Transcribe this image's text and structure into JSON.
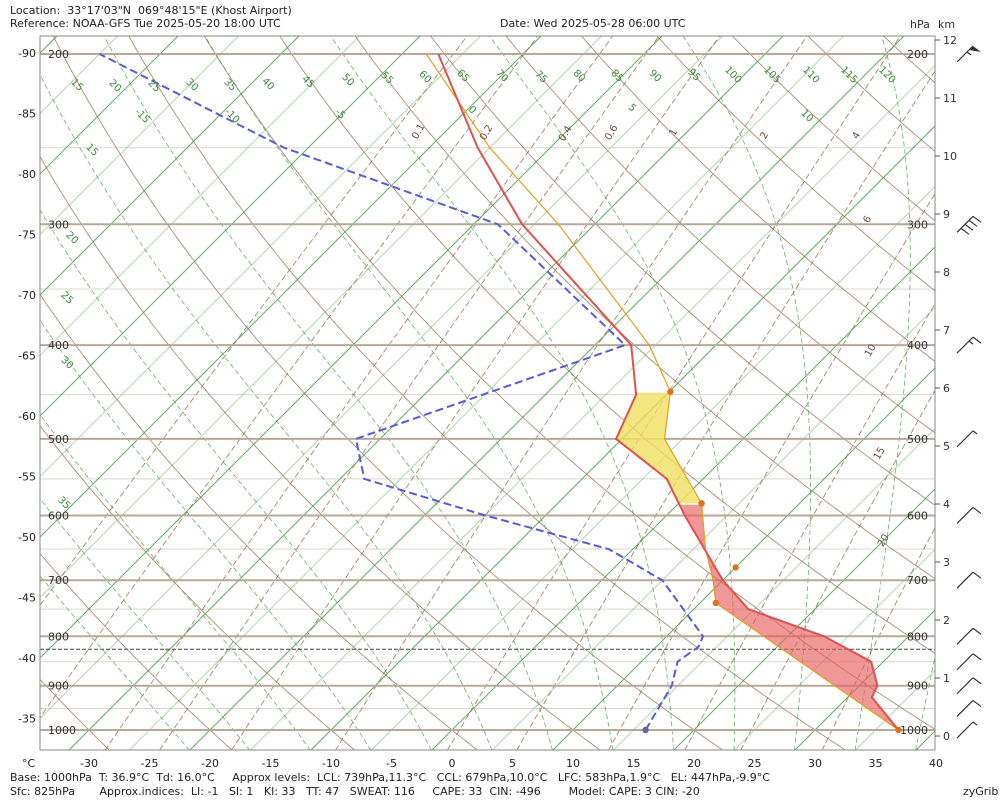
{
  "header": {
    "location": "Location:  33°17'03\"N  069°48'15\"E (Khost Airport)",
    "reference": "Reference: NOAA-GFS Tue 2025-05-20 18:00 UTC",
    "date": "Date: Wed 2025-05-28 06:00 UTC",
    "unit_hpa": "hPa",
    "unit_km": "km"
  },
  "footer": {
    "line1": "Base: 1000hPa  T: 36.9°C  Td: 16.0°C     Approx levels:  LCL: 739hPa,11.3°C   CCL: 679hPa,10.0°C   LFC: 583hPa,1.9°C   EL: 447hPa,-9.9°C",
    "line2": "Sfc: 825hPa       Approx.indices:  LI: -1   SI: 1   KI: 33   TT: 47   SWEAT: 116     CAPE: 33  CIN: -496        Model: CAPE: 3 CIN: -20",
    "brand": "zyGrib"
  },
  "colors": {
    "temperature": "#e05050",
    "dewpoint": "#5a5ad8",
    "parcel": "#e0a020",
    "cape_fill": "#e86060",
    "cape_fill_yellow": "#f0e060",
    "isotherm": "#50a050",
    "dry_adiabat": "#8b6a4a",
    "moist_adiabat": "#50a050",
    "mixing_ratio": "#8b6a4a",
    "isobar": "#b8a898"
  },
  "chart_data": {
    "type": "skew-t",
    "x_axis_unit": "°C",
    "x_ticks": [
      -30,
      -25,
      -20,
      -15,
      -10,
      -5,
      0,
      5,
      10,
      15,
      20,
      25,
      30,
      35,
      40
    ],
    "xlim": [
      -35,
      40
    ],
    "ylim_hpa": [
      1000,
      200
    ],
    "left_axis_ticks": [
      -90,
      -85,
      -80,
      -75,
      -70,
      -65,
      -60,
      -55,
      -50,
      -45,
      -40,
      -35
    ],
    "pressure_levels": [
      1000,
      900,
      800,
      700,
      600,
      500,
      400,
      300,
      200
    ],
    "km_ticks": [
      0,
      1,
      2,
      3,
      4,
      5,
      6,
      7,
      8,
      9,
      10,
      11,
      12
    ],
    "dry_adiabat_labels": [
      15,
      20,
      25,
      30,
      35,
      40,
      45,
      50,
      55,
      60,
      65,
      70,
      75,
      80,
      85,
      90,
      95,
      100,
      105,
      110,
      115,
      120
    ],
    "moist_adiabat_labels": [
      -15,
      -10,
      -5,
      0,
      5,
      10,
      15,
      20,
      25,
      30,
      35
    ],
    "mixing_ratio_labels": [
      "0.1",
      "0.2",
      "0.4",
      "0.6",
      "1",
      "2",
      "4",
      "6",
      "10",
      "15",
      "20"
    ],
    "temperature_profile": [
      {
        "p": 1000,
        "t": 36.9
      },
      {
        "p": 925,
        "t": 32.0
      },
      {
        "p": 900,
        "t": 31.5
      },
      {
        "p": 850,
        "t": 29.0
      },
      {
        "p": 800,
        "t": 23.0
      },
      {
        "p": 750,
        "t": 14.5
      },
      {
        "p": 700,
        "t": 10.0
      },
      {
        "p": 600,
        "t": 1.5
      },
      {
        "p": 550,
        "t": -3.0
      },
      {
        "p": 500,
        "t": -10.5
      },
      {
        "p": 450,
        "t": -12.5
      },
      {
        "p": 400,
        "t": -17.0
      },
      {
        "p": 300,
        "t": -36.0
      },
      {
        "p": 250,
        "t": -46.0
      },
      {
        "p": 200,
        "t": -57.0
      }
    ],
    "dewpoint_profile": [
      {
        "p": 1000,
        "t": 16.0
      },
      {
        "p": 900,
        "t": 14.5
      },
      {
        "p": 850,
        "t": 13.0
      },
      {
        "p": 820,
        "t": 13.5
      },
      {
        "p": 800,
        "t": 13.0
      },
      {
        "p": 700,
        "t": 5.0
      },
      {
        "p": 650,
        "t": -2.0
      },
      {
        "p": 600,
        "t": -15.0
      },
      {
        "p": 550,
        "t": -28.0
      },
      {
        "p": 500,
        "t": -32.0
      },
      {
        "p": 400,
        "t": -17.5
      },
      {
        "p": 300,
        "t": -38.0
      },
      {
        "p": 250,
        "t": -62.0
      },
      {
        "p": 200,
        "t": -85.0
      }
    ],
    "parcel_profile": [
      {
        "p": 1000,
        "t": 36.9
      },
      {
        "p": 739,
        "t": 11.3
      },
      {
        "p": 700,
        "t": 9.2
      },
      {
        "p": 650,
        "t": 6.0
      },
      {
        "p": 583,
        "t": 1.9
      },
      {
        "p": 500,
        "t": -6.5
      },
      {
        "p": 447,
        "t": -9.9
      },
      {
        "p": 400,
        "t": -15.5
      },
      {
        "p": 300,
        "t": -33.0
      },
      {
        "p": 250,
        "t": -45.0
      },
      {
        "p": 200,
        "t": -58.0
      }
    ],
    "markers": [
      {
        "name": "LCL",
        "p": 739,
        "t": 11.3
      },
      {
        "name": "CCL",
        "p": 679,
        "t": 10.0
      },
      {
        "name": "LFC",
        "p": 583,
        "t": 1.9
      },
      {
        "name": "EL",
        "p": 447,
        "t": -9.9
      },
      {
        "name": "Base",
        "p": 1000,
        "t": 36.9
      },
      {
        "name": "Td",
        "p": 1000,
        "t": 16.0
      }
    ],
    "surface_pressure_hpa": 825,
    "wind_barbs": [
      {
        "p": 200,
        "speed_kt": 55
      },
      {
        "p": 300,
        "speed_kt": 40
      },
      {
        "p": 400,
        "speed_kt": 15
      },
      {
        "p": 500,
        "speed_kt": 5
      },
      {
        "p": 600,
        "speed_kt": 10
      },
      {
        "p": 700,
        "speed_kt": 10
      },
      {
        "p": 800,
        "speed_kt": 10
      },
      {
        "p": 850,
        "speed_kt": 10
      },
      {
        "p": 900,
        "speed_kt": 10
      },
      {
        "p": 950,
        "speed_kt": 10
      },
      {
        "p": 1000,
        "speed_kt": 5
      }
    ]
  }
}
